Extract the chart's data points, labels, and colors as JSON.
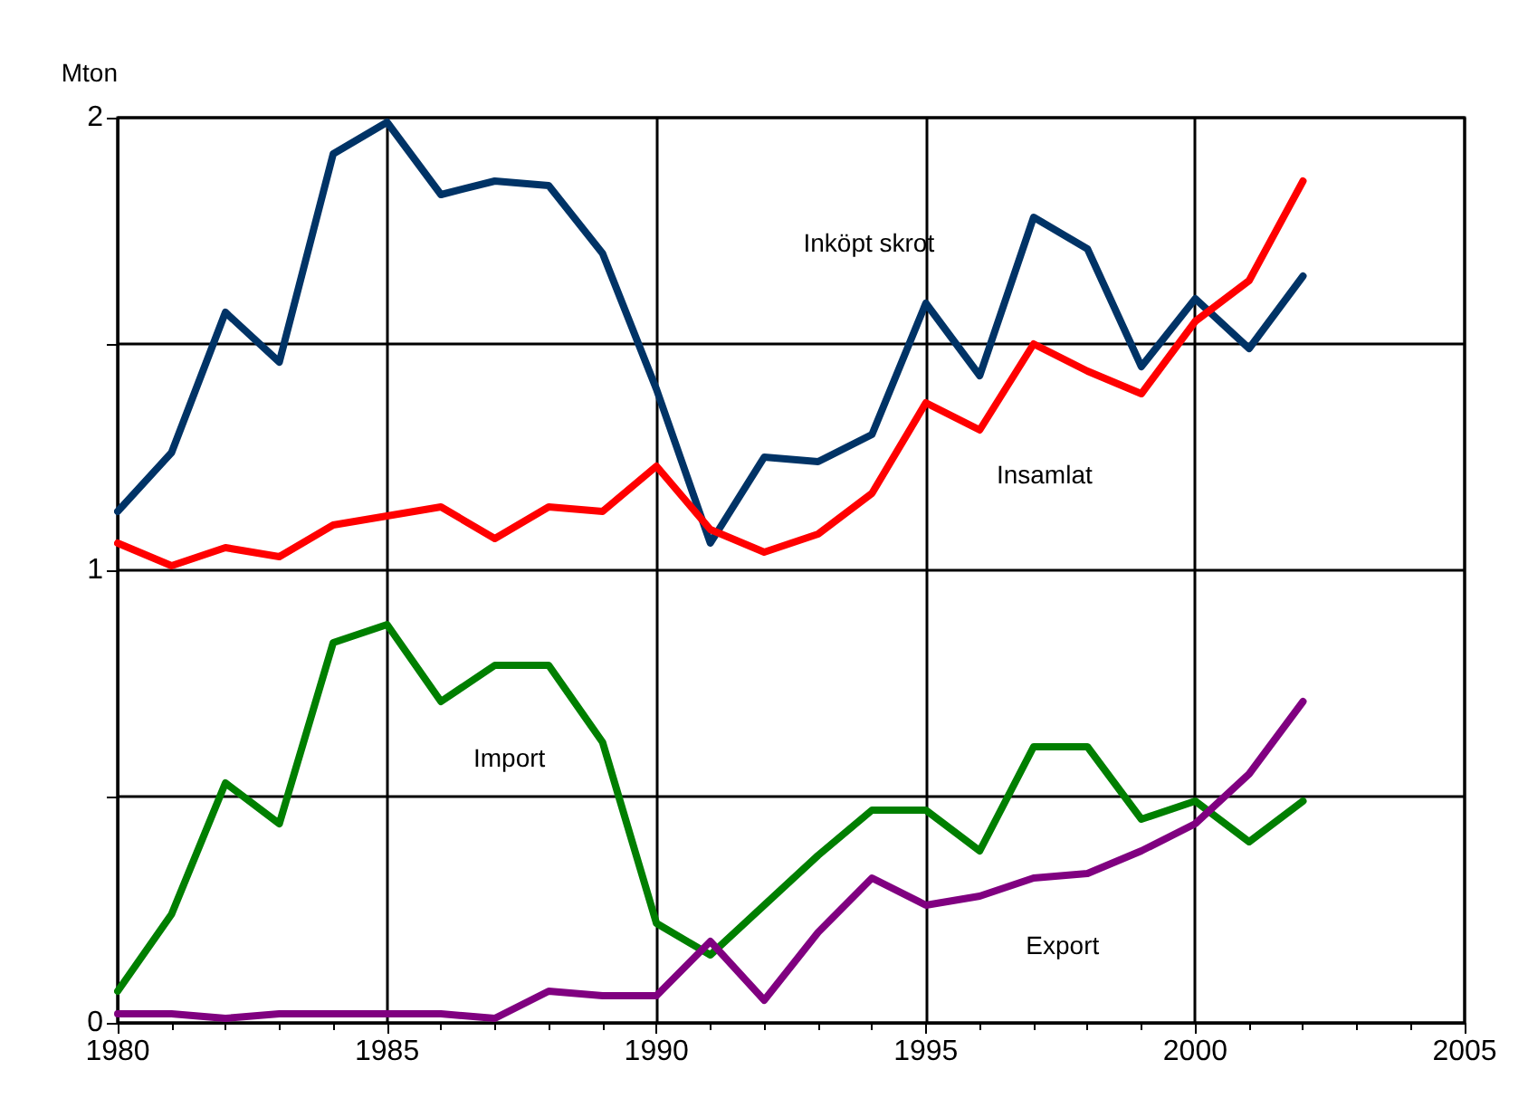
{
  "chart_data": {
    "type": "line",
    "ylabel": "Mton",
    "x": [
      1980,
      1981,
      1982,
      1983,
      1984,
      1985,
      1986,
      1987,
      1988,
      1989,
      1990,
      1991,
      1992,
      1993,
      1994,
      1995,
      1996,
      1997,
      1998,
      1999,
      2000,
      2001,
      2002
    ],
    "series": [
      {
        "name": "Inköpt skrot",
        "color": "#003366",
        "values": [
          1.13,
          1.26,
          1.57,
          1.46,
          1.92,
          1.99,
          1.83,
          1.86,
          1.85,
          1.7,
          1.4,
          1.06,
          1.25,
          1.24,
          1.3,
          1.59,
          1.43,
          1.78,
          1.71,
          1.45,
          1.6,
          1.49,
          1.65
        ]
      },
      {
        "name": "Insamlat",
        "color": "#ff0000",
        "values": [
          1.06,
          1.01,
          1.05,
          1.03,
          1.1,
          1.12,
          1.14,
          1.07,
          1.14,
          1.13,
          1.23,
          1.09,
          1.04,
          1.08,
          1.17,
          1.37,
          1.31,
          1.5,
          1.44,
          1.39,
          1.55,
          1.64,
          1.86
        ]
      },
      {
        "name": "Import",
        "color": "#007f00",
        "values": [
          0.07,
          0.24,
          0.53,
          0.44,
          0.84,
          0.88,
          0.71,
          0.79,
          0.79,
          0.62,
          0.22,
          0.15,
          0.26,
          0.37,
          0.47,
          0.47,
          0.38,
          0.61,
          0.61,
          0.45,
          0.49,
          0.4,
          0.49
        ]
      },
      {
        "name": "Export",
        "color": "#800080",
        "values": [
          0.02,
          0.02,
          0.01,
          0.02,
          0.02,
          0.02,
          0.02,
          0.01,
          0.07,
          0.06,
          0.06,
          0.18,
          0.05,
          0.2,
          0.32,
          0.26,
          0.28,
          0.32,
          0.33,
          0.38,
          0.44,
          0.55,
          0.71
        ]
      }
    ],
    "xlim": [
      1980,
      2005
    ],
    "xticks": [
      1980,
      1985,
      1990,
      1995,
      2000,
      2005
    ],
    "ylim": [
      0,
      2
    ],
    "yticks": [
      0,
      {
        "value": 0.5,
        "label": null
      },
      1,
      {
        "value": 1.5,
        "label": null
      },
      2
    ],
    "grid": true,
    "legend": false,
    "marker": "none",
    "line_style": "solid"
  }
}
